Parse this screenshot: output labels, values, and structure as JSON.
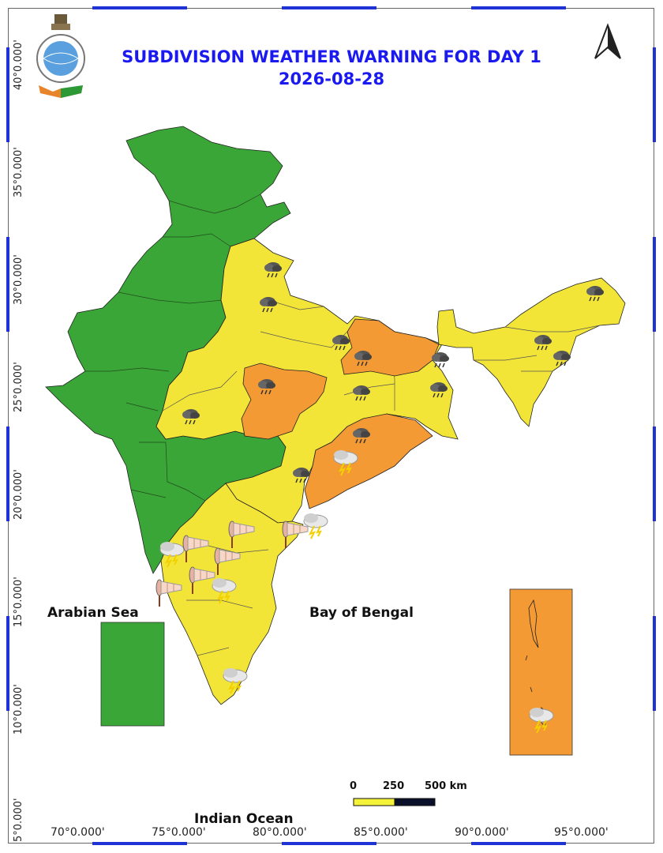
{
  "title": {
    "line1": "SUBDIVISION WEATHER WARNING FOR DAY 1",
    "line2": "2026-08-28"
  },
  "labels": {
    "arabian_sea": "Arabian Sea",
    "bay_of_bengal": "Bay of Bengal",
    "indian_ocean": "Indian Ocean"
  },
  "lat_ticks": [
    "40°0.000'",
    "35°0.000'",
    "30°0.000'",
    "25°0.000'",
    "20°0.000'",
    "15°0.000'",
    "10°0.000'",
    "5°0.000'"
  ],
  "lon_ticks": [
    "70°0.000'",
    "75°0.000'",
    "80°0.000'",
    "85°0.000'",
    "90°0.000'",
    "95°0.000'"
  ],
  "scale_bar": {
    "labels": [
      "0",
      "250",
      "500 km"
    ]
  },
  "colors": {
    "green": "#3aa637",
    "yellow": "#f3e537",
    "orange": "#f39a34",
    "frame_tick": "#1f32d6",
    "title": "#1a1af0"
  },
  "icons": {
    "north_arrow": "north-arrow-icon",
    "emblem": "imd-emblem-icon",
    "rain": "rain-cloud-icon",
    "thunderstorm": "thunderstorm-icon",
    "gusty_wind": "windsock-icon"
  }
}
